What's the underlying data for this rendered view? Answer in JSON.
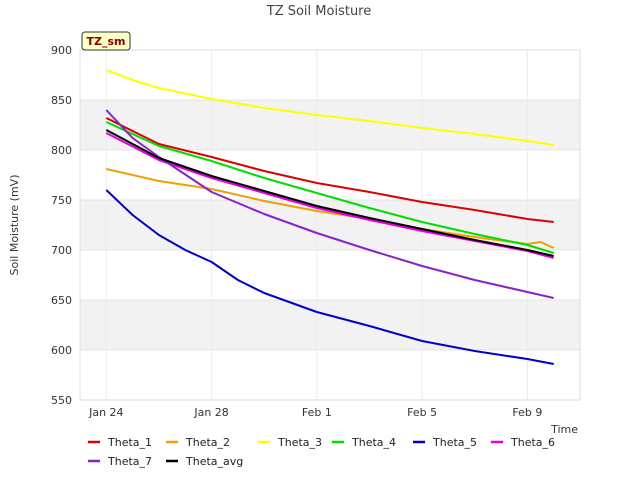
{
  "chart_data": {
    "type": "line",
    "title": "TZ Soil Moisture",
    "xlabel": "Time",
    "ylabel": "Soil Moisture (mV)",
    "tag": "TZ_sm",
    "ylim": [
      550,
      900
    ],
    "yticks": [
      550,
      600,
      650,
      700,
      750,
      800,
      850,
      900
    ],
    "xlim": [
      "2024-01-23",
      "2024-02-11"
    ],
    "xticks": [
      {
        "label": "Jan 24",
        "date": "2024-01-24"
      },
      {
        "label": "Jan 28",
        "date": "2024-01-28"
      },
      {
        "label": "Feb 1",
        "date": "2024-02-01"
      },
      {
        "label": "Feb 5",
        "date": "2024-02-05"
      },
      {
        "label": "Feb 9",
        "date": "2024-02-09"
      }
    ],
    "grid": true,
    "legend_position": "bottom",
    "series": [
      {
        "name": "Theta_1",
        "color": "#dd0000",
        "x": [
          "2024-01-24",
          "2024-01-26",
          "2024-01-28",
          "2024-01-30",
          "2024-02-01",
          "2024-02-03",
          "2024-02-05",
          "2024-02-07",
          "2024-02-09",
          "2024-02-10"
        ],
        "values": [
          832,
          806,
          793,
          779,
          767,
          758,
          748,
          740,
          731,
          728
        ]
      },
      {
        "name": "Theta_2",
        "color": "#f0a000",
        "x": [
          "2024-01-24",
          "2024-01-26",
          "2024-01-28",
          "2024-01-30",
          "2024-02-01",
          "2024-02-03",
          "2024-02-05",
          "2024-02-07",
          "2024-02-09",
          "2024-02-09.5",
          "2024-02-10"
        ],
        "values": [
          781,
          769,
          761,
          749,
          739,
          731,
          721,
          713,
          706,
          708,
          702
        ]
      },
      {
        "name": "Theta_3",
        "color": "#ffff00",
        "x": [
          "2024-01-24",
          "2024-01-25",
          "2024-01-26",
          "2024-01-28",
          "2024-01-30",
          "2024-02-01",
          "2024-02-03",
          "2024-02-05",
          "2024-02-07",
          "2024-02-09",
          "2024-02-10"
        ],
        "values": [
          880,
          870,
          862,
          851,
          842,
          835,
          829,
          822,
          816,
          809,
          805
        ]
      },
      {
        "name": "Theta_4",
        "color": "#00dd00",
        "x": [
          "2024-01-24",
          "2024-01-26",
          "2024-01-28",
          "2024-01-30",
          "2024-02-01",
          "2024-02-03",
          "2024-02-05",
          "2024-02-07",
          "2024-02-09",
          "2024-02-10"
        ],
        "values": [
          828,
          804,
          789,
          772,
          757,
          742,
          728,
          716,
          705,
          697
        ]
      },
      {
        "name": "Theta_5",
        "color": "#0000cc",
        "x": [
          "2024-01-24",
          "2024-01-25",
          "2024-01-26",
          "2024-01-27",
          "2024-01-28",
          "2024-01-29",
          "2024-01-30",
          "2024-02-01",
          "2024-02-03",
          "2024-02-05",
          "2024-02-07",
          "2024-02-09",
          "2024-02-10"
        ],
        "values": [
          760,
          735,
          715,
          700,
          688,
          670,
          657,
          638,
          624,
          609,
          599,
          591,
          586
        ]
      },
      {
        "name": "Theta_6",
        "color": "#e000e0",
        "x": [
          "2024-01-24",
          "2024-01-26",
          "2024-01-28",
          "2024-01-30",
          "2024-02-01",
          "2024-02-03",
          "2024-02-05",
          "2024-02-07",
          "2024-02-09",
          "2024-02-10"
        ],
        "values": [
          817,
          790,
          772,
          757,
          742,
          730,
          719,
          709,
          699,
          692
        ]
      },
      {
        "name": "Theta_7",
        "color": "#8822cc",
        "x": [
          "2024-01-24",
          "2024-01-25",
          "2024-01-26",
          "2024-01-28",
          "2024-01-30",
          "2024-02-01",
          "2024-02-03",
          "2024-02-05",
          "2024-02-07",
          "2024-02-09",
          "2024-02-10"
        ],
        "values": [
          840,
          812,
          793,
          758,
          736,
          717,
          700,
          684,
          670,
          658,
          652
        ]
      },
      {
        "name": "Theta_avg",
        "color": "#000000",
        "x": [
          "2024-01-24",
          "2024-01-26",
          "2024-01-28",
          "2024-01-30",
          "2024-02-01",
          "2024-02-03",
          "2024-02-05",
          "2024-02-07",
          "2024-02-09",
          "2024-02-10"
        ],
        "values": [
          820,
          792,
          774,
          759,
          744,
          732,
          721,
          710,
          700,
          694
        ]
      }
    ]
  }
}
